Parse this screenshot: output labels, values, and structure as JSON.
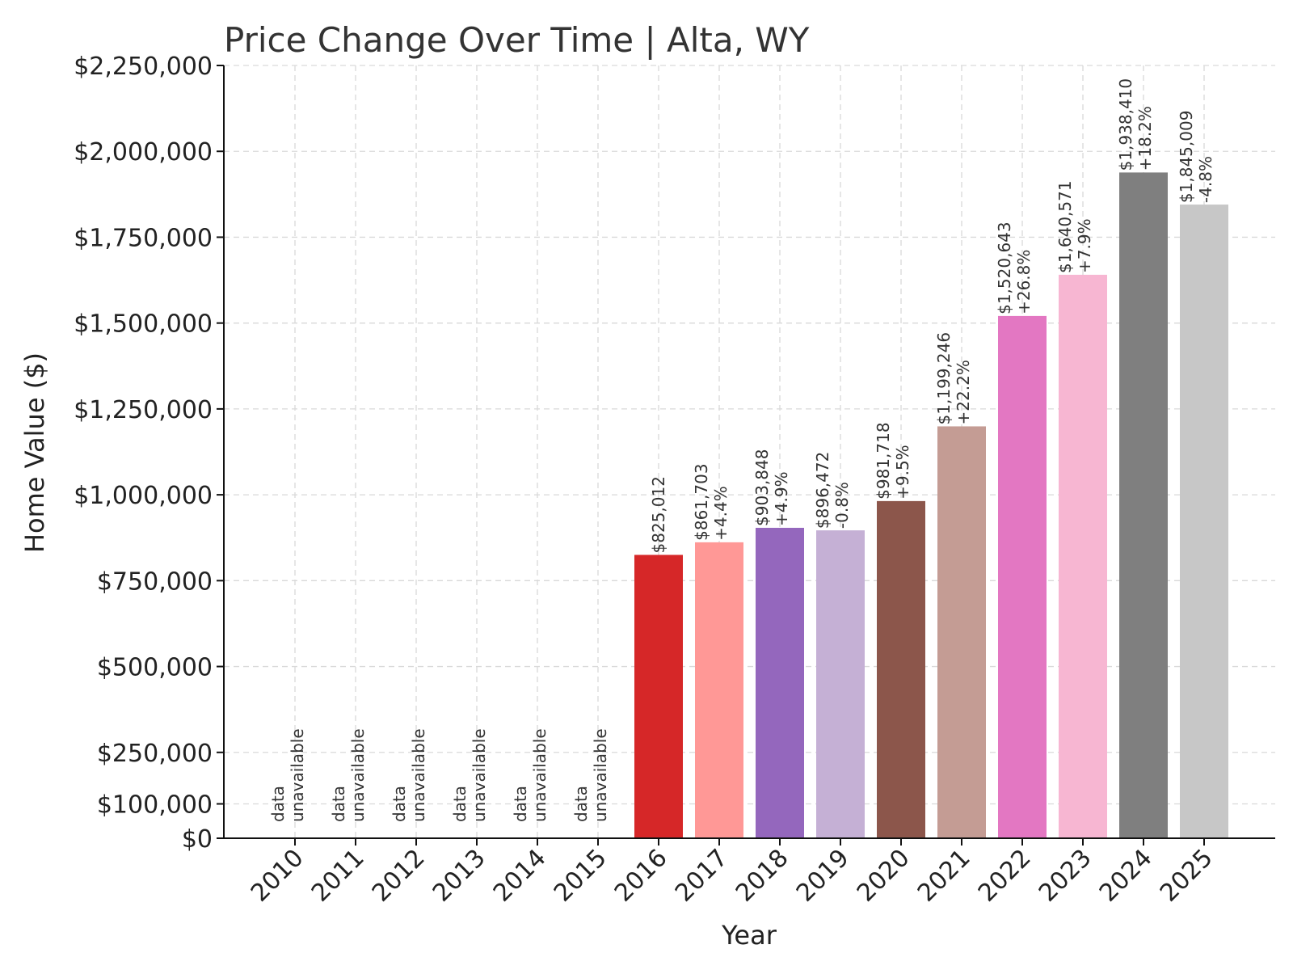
{
  "chart_data": {
    "type": "bar",
    "title": "Price Change Over Time | Alta, WY",
    "xlabel": "Year",
    "ylabel": "Home Value ($)",
    "ylim": [
      0,
      2250000
    ],
    "grid": true,
    "categories": [
      "2010",
      "2011",
      "2012",
      "2013",
      "2014",
      "2015",
      "2016",
      "2017",
      "2018",
      "2019",
      "2020",
      "2021",
      "2022",
      "2023",
      "2024",
      "2025"
    ],
    "values": [
      null,
      null,
      null,
      null,
      null,
      null,
      825012,
      861703,
      903848,
      896472,
      981718,
      1199246,
      1520643,
      1640571,
      1938410,
      1845009
    ],
    "value_labels": [
      "",
      "",
      "",
      "",
      "",
      "",
      "$825,012",
      "$861,703",
      "$903,848",
      "$896,472",
      "$981,718",
      "$1,199,246",
      "$1,520,643",
      "$1,640,571",
      "$1,938,410",
      "$1,845,009"
    ],
    "change_labels": [
      "",
      "",
      "",
      "",
      "",
      "",
      "",
      "+4.4%",
      "+4.9%",
      "-0.8%",
      "+9.5%",
      "+22.2%",
      "+26.8%",
      "+7.9%",
      "+18.2%",
      "-4.8%"
    ],
    "unavailable_label": [
      "data",
      "unavailable"
    ],
    "colors": [
      "#1f77b4",
      "#aec7e8",
      "#ff7f0e",
      "#ffbb78",
      "#2ca02c",
      "#98df8a",
      "#d62728",
      "#ff9896",
      "#9467bd",
      "#c5b0d5",
      "#8c564b",
      "#c49c94",
      "#e377c2",
      "#f7b6d2",
      "#7f7f7f",
      "#c7c7c7"
    ],
    "y_ticks": [
      0,
      100000,
      250000,
      500000,
      750000,
      1000000,
      1250000,
      1500000,
      1750000,
      2000000,
      2250000
    ],
    "y_tick_labels": [
      "$0",
      "$100,000",
      "$250,000",
      "$500,000",
      "$750,000",
      "$1,000,000",
      "$1,250,000",
      "$1,500,000",
      "$1,750,000",
      "$2,000,000",
      "$2,250,000"
    ]
  }
}
